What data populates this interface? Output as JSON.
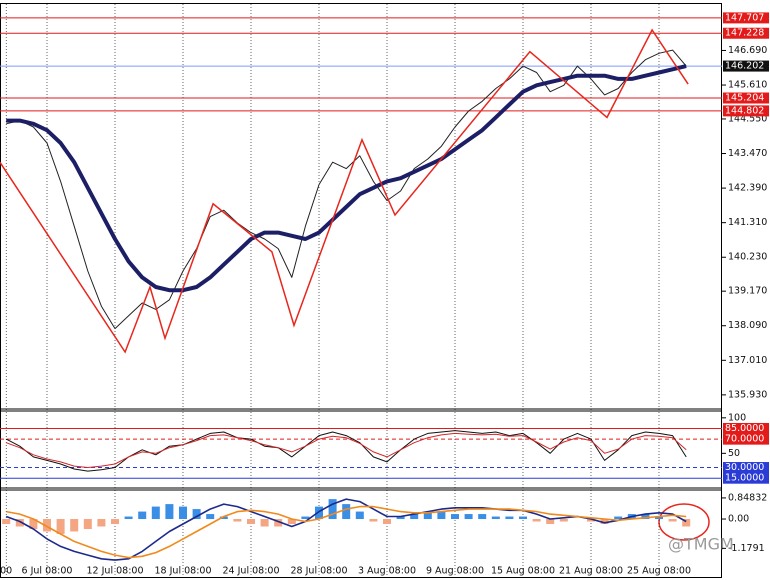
{
  "watermark": "@TMGM",
  "chart_data": [
    {
      "type": "line",
      "ylim": [
        135.52,
        148.11
      ],
      "yticks": [
        {
          "value": 146.69,
          "label": "146.690"
        },
        {
          "value": 145.61,
          "label": "145.610"
        },
        {
          "value": 144.55,
          "label": "144.550"
        },
        {
          "value": 143.47,
          "label": "143.470"
        },
        {
          "value": 142.39,
          "label": "142.390"
        },
        {
          "value": 141.31,
          "label": "141.310"
        },
        {
          "value": 140.23,
          "label": "140.230"
        },
        {
          "value": 139.17,
          "label": "139.170"
        },
        {
          "value": 138.09,
          "label": "138.090"
        },
        {
          "value": 137.01,
          "label": "137.010"
        },
        {
          "value": 135.93,
          "label": "135.930"
        }
      ],
      "levels": [
        {
          "value": 147.707,
          "color": "#e31a1a"
        },
        {
          "value": 147.228,
          "color": "#e31a1a"
        },
        {
          "value": 146.202,
          "color": "#7d9bff",
          "label_color": "#111111"
        },
        {
          "value": 145.204,
          "color": "#e31a1a"
        },
        {
          "value": 144.802,
          "color": "#e31a1a"
        }
      ],
      "series": [
        {
          "color": "#222222",
          "width": 1,
          "values": [
            144.4,
            144.5,
            144.3,
            143.8,
            142.6,
            141.2,
            139.8,
            138.7,
            138.0,
            138.4,
            138.8,
            138.6,
            138.9,
            139.8,
            140.5,
            141.5,
            141.7,
            141.3,
            141.0,
            140.8,
            140.5,
            139.6,
            141.2,
            142.5,
            143.2,
            143.0,
            143.4,
            142.6,
            142.0,
            142.3,
            143.0,
            143.3,
            143.7,
            144.3,
            144.8,
            145.1,
            145.5,
            145.8,
            146.2,
            146.0,
            145.4,
            145.6,
            146.2,
            145.8,
            145.3,
            145.5,
            146.0,
            146.4,
            146.6,
            146.7,
            146.2
          ]
        },
        {
          "color": "#1c1f66",
          "width": 4,
          "values": [
            144.5,
            144.5,
            144.4,
            144.2,
            143.8,
            143.2,
            142.4,
            141.6,
            140.8,
            140.1,
            139.6,
            139.3,
            139.2,
            139.2,
            139.3,
            139.6,
            140.0,
            140.4,
            140.8,
            141.0,
            141.0,
            140.9,
            140.8,
            141.0,
            141.4,
            141.8,
            142.2,
            142.4,
            142.6,
            142.7,
            142.9,
            143.1,
            143.3,
            143.6,
            143.9,
            144.2,
            144.6,
            145.0,
            145.4,
            145.6,
            145.7,
            145.8,
            145.9,
            145.9,
            145.9,
            145.8,
            145.8,
            145.9,
            146.0,
            146.1,
            146.2
          ]
        }
      ],
      "zigzag": {
        "color": "#e8261c",
        "x": [
          -0.46,
          8.74,
          10.57,
          11.68,
          15.21,
          19.54,
          21.16,
          26.16,
          28.59,
          38.51,
          44.18,
          47.49,
          50.14
        ],
        "values": [
          143.2,
          137.27,
          139.3,
          137.7,
          141.9,
          140.4,
          138.1,
          143.9,
          141.55,
          146.65,
          144.6,
          147.33,
          145.64
        ]
      }
    },
    {
      "type": "line",
      "ylim": [
        2.6,
        108.2
      ],
      "yticks": [
        100,
        50
      ],
      "levels": [
        {
          "value": 85,
          "label": "85.0000",
          "color": "#e31a1a"
        },
        {
          "value": 70,
          "label": "70.0000",
          "color": "#e31a1a",
          "dashed": true
        },
        {
          "value": 30,
          "label": "30.0000",
          "color": "#2a3bd6",
          "dashed": true
        },
        {
          "value": 15,
          "label": "15.0000",
          "color": "#2a3bd6"
        }
      ],
      "series": [
        {
          "color": "#111111",
          "width": 1,
          "values": [
            70,
            60,
            45,
            40,
            35,
            28,
            25,
            27,
            30,
            45,
            55,
            48,
            60,
            62,
            70,
            78,
            80,
            72,
            70,
            60,
            58,
            45,
            60,
            75,
            80,
            75,
            65,
            45,
            38,
            55,
            70,
            78,
            80,
            82,
            80,
            78,
            80,
            75,
            78,
            65,
            50,
            70,
            78,
            70,
            40,
            55,
            75,
            80,
            78,
            75,
            45
          ]
        },
        {
          "color": "#d62728",
          "width": 1,
          "values": [
            65,
            58,
            48,
            42,
            38,
            32,
            30,
            32,
            35,
            45,
            52,
            50,
            58,
            62,
            68,
            75,
            76,
            72,
            68,
            62,
            58,
            52,
            60,
            70,
            74,
            72,
            64,
            52,
            45,
            55,
            65,
            72,
            76,
            78,
            77,
            76,
            77,
            74,
            75,
            66,
            56,
            66,
            72,
            68,
            50,
            56,
            70,
            75,
            74,
            72,
            55
          ]
        }
      ]
    },
    {
      "type": "combo",
      "ylim": [
        -2.371,
        1.127
      ],
      "yticks": [
        0.84832,
        {
          "value": 0,
          "label": "0.00"
        },
        -1.1791
      ],
      "categories": [
        "00",
        null,
        null,
        "6 Jul 08:00",
        null,
        null,
        null,
        null,
        "12 Jul 08:00",
        null,
        null,
        null,
        null,
        "18 Jul 08:00",
        null,
        null,
        null,
        null,
        "24 Jul 08:00",
        null,
        null,
        null,
        null,
        "28 Jul 08:00",
        null,
        null,
        null,
        null,
        "3 Aug 08:00",
        null,
        null,
        null,
        null,
        "9 Aug 08:00",
        null,
        null,
        null,
        null,
        "15 Aug 08:00",
        null,
        null,
        null,
        null,
        "21 Aug 08:00",
        null,
        null,
        null,
        null,
        "25 Aug 08:00",
        null,
        null
      ],
      "series": [
        {
          "kind": "bar",
          "color": "#3a8ee6",
          "negative_color": "#f4a582",
          "values": [
            -0.2,
            -0.3,
            -0.4,
            -0.5,
            -0.6,
            -0.5,
            -0.4,
            -0.3,
            -0.2,
            0.1,
            0.3,
            0.5,
            0.6,
            0.5,
            0.4,
            0.2,
            0.1,
            -0.1,
            -0.2,
            -0.3,
            -0.3,
            -0.2,
            0.1,
            0.5,
            0.8,
            0.6,
            0.3,
            -0.1,
            -0.2,
            0.1,
            0.2,
            0.3,
            0.3,
            0.2,
            0.2,
            0.2,
            0.1,
            0.1,
            0.1,
            -0.1,
            -0.2,
            -0.1,
            0.0,
            -0.1,
            -0.2,
            0.1,
            0.2,
            0.2,
            0.1,
            -0.1,
            -0.3
          ]
        },
        {
          "kind": "line",
          "color": "#1c2a8c",
          "width": 1.6,
          "values": [
            0.1,
            -0.1,
            -0.4,
            -0.8,
            -1.1,
            -1.3,
            -1.45,
            -1.6,
            -1.65,
            -1.6,
            -1.3,
            -0.9,
            -0.5,
            -0.2,
            0.1,
            0.4,
            0.6,
            0.5,
            0.3,
            0.1,
            -0.1,
            -0.3,
            -0.1,
            0.3,
            0.6,
            0.8,
            0.7,
            0.4,
            0.1,
            0.1,
            0.2,
            0.3,
            0.4,
            0.45,
            0.45,
            0.45,
            0.4,
            0.35,
            0.35,
            0.2,
            0.0,
            0.05,
            0.1,
            0.0,
            -0.15,
            -0.05,
            0.1,
            0.2,
            0.25,
            0.2,
            -0.1
          ]
        },
        {
          "kind": "line",
          "color": "#f08a1c",
          "width": 1.6,
          "values": [
            0.3,
            0.2,
            0.0,
            -0.3,
            -0.6,
            -0.9,
            -1.1,
            -1.3,
            -1.45,
            -1.55,
            -1.5,
            -1.35,
            -1.1,
            -0.8,
            -0.5,
            -0.2,
            0.1,
            0.3,
            0.35,
            0.3,
            0.2,
            0.0,
            -0.1,
            0.0,
            0.2,
            0.4,
            0.5,
            0.5,
            0.4,
            0.3,
            0.25,
            0.25,
            0.3,
            0.35,
            0.4,
            0.4,
            0.4,
            0.4,
            0.35,
            0.3,
            0.2,
            0.15,
            0.1,
            0.05,
            0.0,
            -0.05,
            0.0,
            0.05,
            0.1,
            0.15,
            0.1
          ]
        }
      ]
    }
  ]
}
